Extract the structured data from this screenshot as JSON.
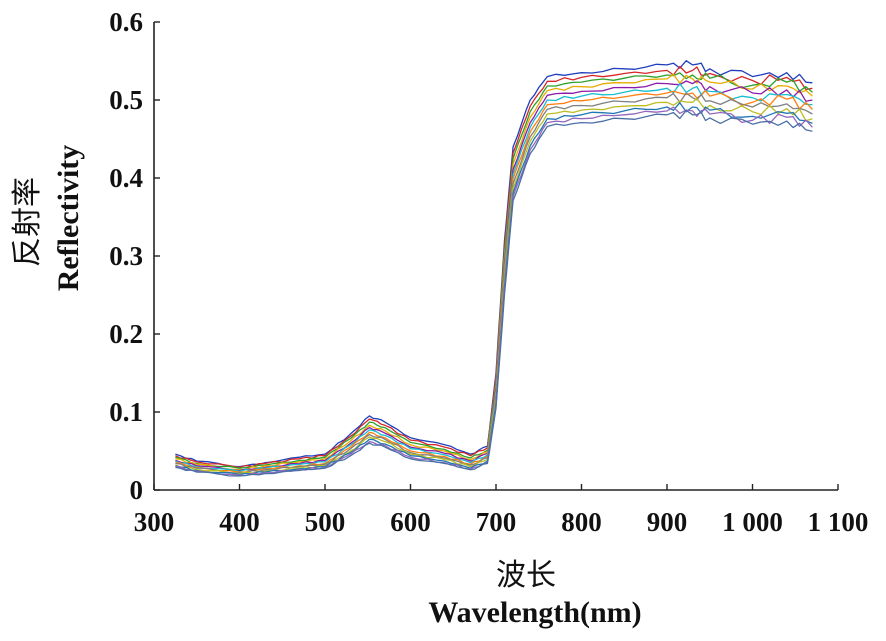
{
  "chart_data": {
    "type": "line",
    "title": "",
    "xlabel_cn": "波长",
    "xlabel": "Wavelength(nm)",
    "ylabel_cn": "反射率",
    "ylabel": "Reflectivity",
    "xlim": [
      300,
      1100
    ],
    "ylim": [
      0,
      0.6
    ],
    "x_ticks": [
      300,
      400,
      500,
      600,
      700,
      800,
      900,
      1000,
      1100
    ],
    "x_tick_labels": [
      "300",
      "400",
      "500",
      "600",
      "700",
      "800",
      "900",
      "1 000",
      "1 100"
    ],
    "y_ticks": [
      0,
      0.1,
      0.2,
      0.3,
      0.4,
      0.5,
      0.6
    ],
    "y_tick_labels": [
      "0",
      "0.1",
      "0.2",
      "0.3",
      "0.4",
      "0.5",
      "0.6"
    ],
    "grid": false,
    "legend": "none",
    "x": [
      325,
      350,
      400,
      430,
      470,
      500,
      530,
      552,
      570,
      600,
      640,
      670,
      690,
      700,
      710,
      720,
      740,
      760,
      800,
      850,
      900,
      930,
      950,
      1000,
      1040,
      1070
    ],
    "series": [
      {
        "color": "#1f3fbf",
        "values": [
          0.046,
          0.037,
          0.03,
          0.035,
          0.042,
          0.046,
          0.072,
          0.095,
          0.087,
          0.067,
          0.058,
          0.046,
          0.056,
          0.15,
          0.32,
          0.44,
          0.5,
          0.53,
          0.535,
          0.54,
          0.545,
          0.545,
          0.54,
          0.53,
          0.535,
          0.522
        ]
      },
      {
        "color": "#d62728",
        "values": [
          0.044,
          0.036,
          0.029,
          0.034,
          0.04,
          0.044,
          0.069,
          0.091,
          0.083,
          0.064,
          0.055,
          0.044,
          0.054,
          0.145,
          0.312,
          0.432,
          0.492,
          0.524,
          0.529,
          0.534,
          0.538,
          0.538,
          0.534,
          0.525,
          0.529,
          0.515
        ]
      },
      {
        "color": "#2ca02c",
        "values": [
          0.042,
          0.034,
          0.028,
          0.032,
          0.038,
          0.042,
          0.066,
          0.087,
          0.08,
          0.061,
          0.052,
          0.041,
          0.051,
          0.14,
          0.305,
          0.425,
          0.485,
          0.518,
          0.523,
          0.528,
          0.532,
          0.532,
          0.528,
          0.519,
          0.523,
          0.51
        ]
      },
      {
        "color": "#e6ab02",
        "values": [
          0.04,
          0.033,
          0.026,
          0.031,
          0.036,
          0.04,
          0.063,
          0.083,
          0.076,
          0.058,
          0.05,
          0.039,
          0.049,
          0.136,
          0.298,
          0.418,
          0.478,
          0.512,
          0.517,
          0.522,
          0.527,
          0.527,
          0.523,
          0.514,
          0.518,
          0.505
        ]
      },
      {
        "color": "#8c1aa8",
        "values": [
          0.038,
          0.031,
          0.025,
          0.029,
          0.034,
          0.038,
          0.06,
          0.08,
          0.073,
          0.055,
          0.047,
          0.037,
          0.047,
          0.132,
          0.291,
          0.411,
          0.471,
          0.506,
          0.511,
          0.516,
          0.521,
          0.521,
          0.517,
          0.509,
          0.513,
          0.5
        ]
      },
      {
        "color": "#17becf",
        "values": [
          0.037,
          0.03,
          0.024,
          0.028,
          0.033,
          0.036,
          0.058,
          0.077,
          0.07,
          0.053,
          0.045,
          0.035,
          0.045,
          0.128,
          0.285,
          0.405,
          0.465,
          0.5,
          0.505,
          0.51,
          0.515,
          0.515,
          0.511,
          0.503,
          0.507,
          0.494
        ]
      },
      {
        "color": "#ff7f0e",
        "values": [
          0.035,
          0.029,
          0.023,
          0.027,
          0.031,
          0.034,
          0.055,
          0.074,
          0.067,
          0.05,
          0.043,
          0.033,
          0.043,
          0.124,
          0.279,
          0.399,
          0.459,
          0.494,
          0.499,
          0.504,
          0.509,
          0.509,
          0.505,
          0.497,
          0.501,
          0.488
        ]
      },
      {
        "color": "#7f7f7f",
        "values": [
          0.034,
          0.028,
          0.022,
          0.026,
          0.03,
          0.033,
          0.053,
          0.071,
          0.065,
          0.048,
          0.041,
          0.032,
          0.041,
          0.12,
          0.273,
          0.393,
          0.453,
          0.488,
          0.493,
          0.498,
          0.503,
          0.503,
          0.499,
          0.491,
          0.495,
          0.482
        ]
      },
      {
        "color": "#bcbd22",
        "values": [
          0.032,
          0.026,
          0.021,
          0.024,
          0.028,
          0.031,
          0.05,
          0.068,
          0.062,
          0.046,
          0.039,
          0.03,
          0.039,
          0.116,
          0.267,
          0.387,
          0.447,
          0.482,
          0.487,
          0.492,
          0.497,
          0.497,
          0.493,
          0.485,
          0.489,
          0.476
        ]
      },
      {
        "color": "#1f77b4",
        "values": [
          0.031,
          0.025,
          0.02,
          0.023,
          0.027,
          0.03,
          0.048,
          0.065,
          0.059,
          0.044,
          0.037,
          0.028,
          0.037,
          0.112,
          0.261,
          0.381,
          0.441,
          0.476,
          0.481,
          0.486,
          0.491,
          0.491,
          0.487,
          0.479,
          0.483,
          0.47
        ]
      },
      {
        "color": "#9467bd",
        "values": [
          0.03,
          0.024,
          0.019,
          0.022,
          0.026,
          0.029,
          0.046,
          0.062,
          0.057,
          0.042,
          0.035,
          0.027,
          0.035,
          0.108,
          0.256,
          0.376,
          0.436,
          0.471,
          0.476,
          0.481,
          0.486,
          0.486,
          0.482,
          0.474,
          0.478,
          0.465
        ]
      },
      {
        "color": "#4a6fa5",
        "values": [
          0.029,
          0.023,
          0.018,
          0.021,
          0.025,
          0.028,
          0.044,
          0.06,
          0.055,
          0.04,
          0.034,
          0.026,
          0.034,
          0.105,
          0.251,
          0.371,
          0.431,
          0.466,
          0.471,
          0.476,
          0.481,
          0.481,
          0.477,
          0.469,
          0.473,
          0.46
        ]
      }
    ]
  }
}
